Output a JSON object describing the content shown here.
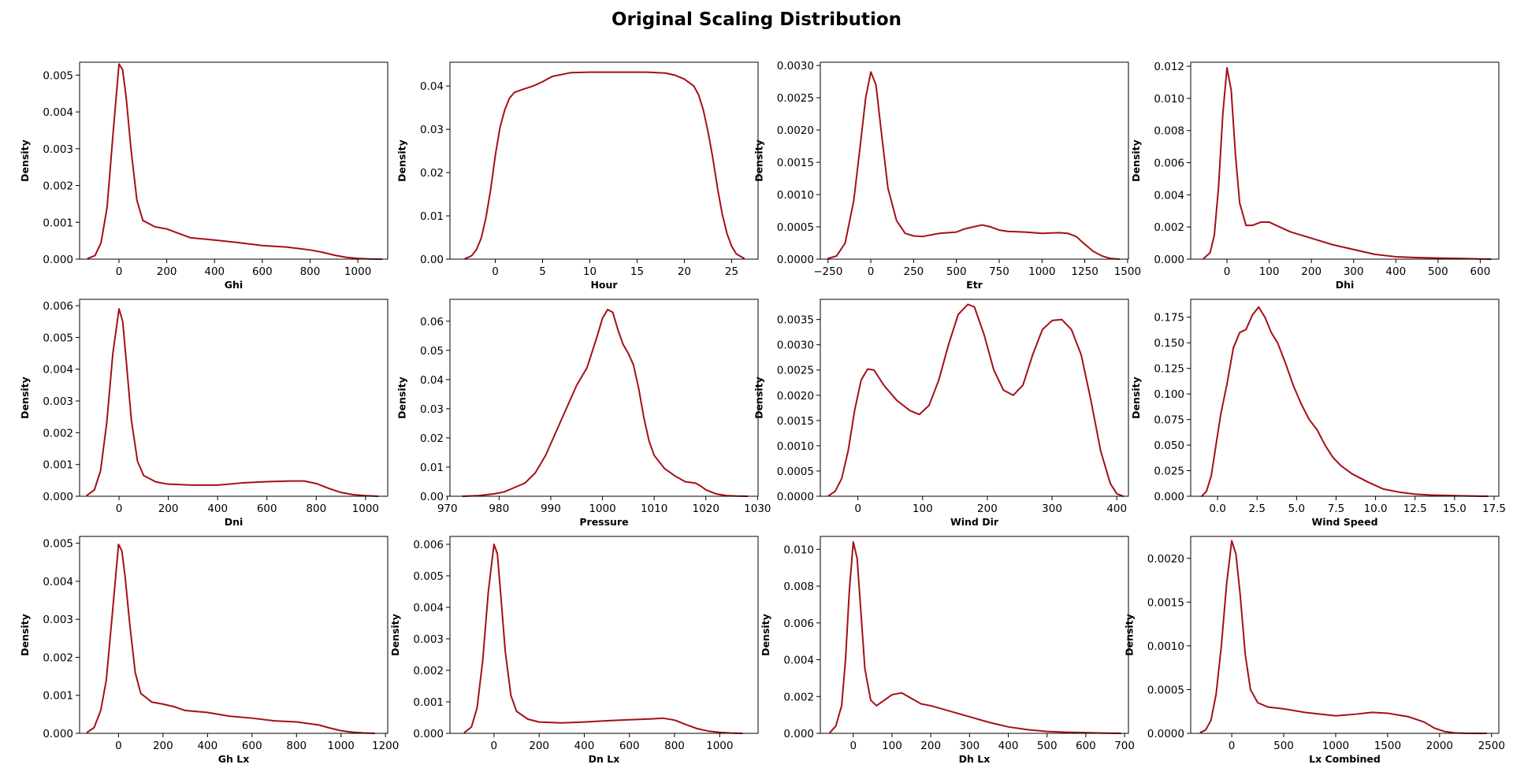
{
  "page": {
    "title": "Original Scaling Distribution"
  },
  "style": {
    "line_color": "#a50f15",
    "axis_color": "#000000"
  },
  "chart_data": [
    {
      "type": "line",
      "xlabel": "Ghi",
      "ylabel": "Density",
      "xlim": [
        -165,
        1125
      ],
      "ylim": [
        0,
        0.00535
      ],
      "xticks": [
        0,
        200,
        400,
        600,
        800,
        1000
      ],
      "xtick_labels": [
        "0",
        "200",
        "400",
        "600",
        "800",
        "1000"
      ],
      "yticks": [
        0,
        0.001,
        0.002,
        0.003,
        0.004,
        0.005
      ],
      "ytick_labels": [
        "0.000",
        "0.001",
        "0.002",
        "0.003",
        "0.004",
        "0.005"
      ],
      "x": [
        -130,
        -100,
        -75,
        -50,
        -25,
        0,
        15,
        30,
        50,
        75,
        100,
        150,
        200,
        250,
        300,
        400,
        500,
        600,
        700,
        800,
        850,
        900,
        950,
        1000,
        1050,
        1100
      ],
      "y": [
        2e-05,
        0.0001,
        0.00045,
        0.0014,
        0.0034,
        0.0053,
        0.00515,
        0.0044,
        0.003,
        0.0016,
        0.00105,
        0.00088,
        0.00082,
        0.0007,
        0.00058,
        0.00052,
        0.00045,
        0.00037,
        0.00033,
        0.00025,
        0.00019,
        0.00011,
        5e-05,
        2e-05,
        5e-06,
        0.0
      ]
    },
    {
      "type": "line",
      "xlabel": "Hour",
      "ylabel": "Density",
      "xlim": [
        -4.8,
        27.8
      ],
      "ylim": [
        0,
        0.0455
      ],
      "xticks": [
        0,
        5,
        10,
        15,
        20,
        25
      ],
      "xtick_labels": [
        "0",
        "5",
        "10",
        "15",
        "20",
        "25"
      ],
      "yticks": [
        0,
        0.01,
        0.02,
        0.03,
        0.04
      ],
      "ytick_labels": [
        "0.00",
        "0.01",
        "0.02",
        "0.03",
        "0.04"
      ],
      "x": [
        -3.2,
        -2.5,
        -2,
        -1.5,
        -1,
        -0.5,
        0,
        0.5,
        1,
        1.5,
        2,
        3,
        4,
        5,
        6,
        8,
        10,
        12,
        14,
        16,
        18,
        19,
        20,
        21,
        21.5,
        22,
        22.5,
        23,
        23.5,
        24,
        24.5,
        25,
        25.5,
        26.3
      ],
      "y": [
        0.0001,
        0.0008,
        0.0022,
        0.0048,
        0.0095,
        0.016,
        0.024,
        0.0305,
        0.0345,
        0.0372,
        0.0385,
        0.0393,
        0.04,
        0.041,
        0.0422,
        0.0431,
        0.0432,
        0.0432,
        0.0432,
        0.0432,
        0.043,
        0.0425,
        0.0416,
        0.04,
        0.038,
        0.0345,
        0.0295,
        0.0235,
        0.0165,
        0.0105,
        0.006,
        0.003,
        0.0012,
        0.0002
      ]
    },
    {
      "type": "line",
      "xlabel": "Etr",
      "ylabel": "Density",
      "xlim": [
        -295,
        1505
      ],
      "ylim": [
        0,
        0.00305
      ],
      "xticks": [
        -250,
        0,
        250,
        500,
        750,
        1000,
        1250,
        1500
      ],
      "xtick_labels": [
        "−250",
        "0",
        "250",
        "500",
        "750",
        "1000",
        "1250",
        "1500"
      ],
      "yticks": [
        0,
        0.0005,
        0.001,
        0.0015,
        0.002,
        0.0025,
        0.003
      ],
      "ytick_labels": [
        "0.0000",
        "0.0005",
        "0.0010",
        "0.0015",
        "0.0020",
        "0.0025",
        "0.0030"
      ],
      "x": [
        -250,
        -200,
        -150,
        -100,
        -60,
        -30,
        0,
        30,
        60,
        100,
        150,
        200,
        250,
        300,
        400,
        500,
        550,
        600,
        650,
        700,
        750,
        800,
        900,
        1000,
        1100,
        1150,
        1200,
        1250,
        1300,
        1350,
        1400,
        1450
      ],
      "y": [
        1e-05,
        5e-05,
        0.00025,
        0.0009,
        0.0018,
        0.0025,
        0.0029,
        0.0027,
        0.002,
        0.0011,
        0.0006,
        0.0004,
        0.00036,
        0.00035,
        0.0004,
        0.00042,
        0.00047,
        0.0005,
        0.00053,
        0.0005,
        0.00045,
        0.00043,
        0.00042,
        0.0004,
        0.00041,
        0.0004,
        0.00035,
        0.00023,
        0.00012,
        5e-05,
        1e-05,
        0.0
      ]
    },
    {
      "type": "line",
      "xlabel": "Dhi",
      "ylabel": "Density",
      "xlim": [
        -86,
        644
      ],
      "ylim": [
        0,
        0.01225
      ],
      "xticks": [
        0,
        100,
        200,
        300,
        400,
        500,
        600
      ],
      "xtick_labels": [
        "0",
        "100",
        "200",
        "300",
        "400",
        "500",
        "600"
      ],
      "yticks": [
        0,
        0.002,
        0.004,
        0.006,
        0.008,
        0.01,
        0.012
      ],
      "ytick_labels": [
        "0.000",
        "0.002",
        "0.004",
        "0.006",
        "0.008",
        "0.010",
        "0.012"
      ],
      "x": [
        -55,
        -40,
        -30,
        -20,
        -10,
        0,
        10,
        20,
        30,
        45,
        60,
        80,
        100,
        125,
        150,
        200,
        250,
        300,
        350,
        400,
        450,
        500,
        550,
        600,
        625
      ],
      "y": [
        5e-05,
        0.0004,
        0.0015,
        0.0045,
        0.009,
        0.0119,
        0.0105,
        0.0065,
        0.0035,
        0.0021,
        0.0021,
        0.0023,
        0.0023,
        0.002,
        0.0017,
        0.0013,
        0.0009,
        0.0006,
        0.0003,
        0.00015,
        0.0001,
        7e-05,
        4e-05,
        1e-05,
        0.0
      ]
    },
    {
      "type": "line",
      "xlabel": "Dni",
      "ylabel": "Density",
      "xlim": [
        -160,
        1090
      ],
      "ylim": [
        0,
        0.0062
      ],
      "xticks": [
        0,
        200,
        400,
        600,
        800,
        1000
      ],
      "xtick_labels": [
        "0",
        "200",
        "400",
        "600",
        "800",
        "1000"
      ],
      "yticks": [
        0,
        0.001,
        0.002,
        0.003,
        0.004,
        0.005,
        0.006
      ],
      "ytick_labels": [
        "0.000",
        "0.001",
        "0.002",
        "0.003",
        "0.004",
        "0.005",
        "0.006"
      ],
      "x": [
        -130,
        -100,
        -75,
        -50,
        -25,
        0,
        15,
        30,
        50,
        75,
        100,
        150,
        200,
        300,
        400,
        500,
        600,
        700,
        750,
        800,
        850,
        900,
        950,
        1000,
        1050
      ],
      "y": [
        3e-05,
        0.0002,
        0.0008,
        0.0023,
        0.0045,
        0.0059,
        0.0055,
        0.0042,
        0.0024,
        0.0011,
        0.00065,
        0.00045,
        0.00038,
        0.00035,
        0.00035,
        0.00042,
        0.00046,
        0.00048,
        0.00048,
        0.0004,
        0.00025,
        0.00012,
        5e-05,
        2e-05,
        0.0
      ]
    },
    {
      "type": "line",
      "xlabel": "Pressure",
      "ylabel": "Density",
      "xlim": [
        970.5,
        1030.1
      ],
      "ylim": [
        0,
        0.0675
      ],
      "xticks": [
        970,
        980,
        990,
        1000,
        1010,
        1020,
        1030
      ],
      "xtick_labels": [
        "970",
        "980",
        "990",
        "1000",
        "1010",
        "1020",
        "1030"
      ],
      "yticks": [
        0,
        0.01,
        0.02,
        0.03,
        0.04,
        0.05,
        0.06
      ],
      "ytick_labels": [
        "0.00",
        "0.01",
        "0.02",
        "0.03",
        "0.04",
        "0.05",
        "0.06"
      ],
      "x": [
        973,
        976,
        979,
        981,
        983,
        985,
        987,
        989,
        991,
        993,
        995,
        997,
        999,
        1000,
        1001,
        1002,
        1003,
        1004,
        1005,
        1006,
        1007,
        1008,
        1009,
        1010,
        1012,
        1014,
        1016,
        1018,
        1019,
        1020,
        1022,
        1024,
        1026,
        1028
      ],
      "y": [
        0.0,
        0.0002,
        0.0008,
        0.0015,
        0.003,
        0.0045,
        0.008,
        0.014,
        0.022,
        0.03,
        0.038,
        0.044,
        0.055,
        0.061,
        0.064,
        0.063,
        0.057,
        0.052,
        0.049,
        0.045,
        0.037,
        0.027,
        0.019,
        0.014,
        0.0095,
        0.007,
        0.005,
        0.0045,
        0.0035,
        0.0022,
        0.0008,
        0.0002,
        5e-05,
        0.0
      ]
    },
    {
      "type": "line",
      "xlabel": "Wind Dir",
      "ylabel": "Density",
      "xlim": [
        -58,
        418
      ],
      "ylim": [
        0,
        0.0039
      ],
      "xticks": [
        0,
        100,
        200,
        300,
        400
      ],
      "xtick_labels": [
        "0",
        "100",
        "200",
        "300",
        "400"
      ],
      "yticks": [
        0,
        0.0005,
        0.001,
        0.0015,
        0.002,
        0.0025,
        0.003,
        0.0035
      ],
      "ytick_labels": [
        "0.0000",
        "0.0005",
        "0.0010",
        "0.0015",
        "0.0020",
        "0.0025",
        "0.0030",
        "0.0035"
      ],
      "x": [
        -45,
        -35,
        -25,
        -15,
        -5,
        5,
        15,
        25,
        40,
        60,
        80,
        95,
        110,
        125,
        140,
        155,
        170,
        180,
        195,
        210,
        225,
        240,
        255,
        270,
        285,
        300,
        315,
        330,
        345,
        360,
        375,
        390,
        400,
        410
      ],
      "y": [
        1e-05,
        0.0001,
        0.00035,
        0.0009,
        0.0017,
        0.0023,
        0.00252,
        0.0025,
        0.0022,
        0.0019,
        0.0017,
        0.00162,
        0.0018,
        0.0023,
        0.003,
        0.0036,
        0.0038,
        0.00375,
        0.0032,
        0.0025,
        0.0021,
        0.002,
        0.0022,
        0.0028,
        0.0033,
        0.00348,
        0.0035,
        0.0033,
        0.0028,
        0.0019,
        0.0009,
        0.00025,
        5e-05,
        0.0
      ]
    },
    {
      "type": "line",
      "xlabel": "Wind Speed",
      "ylabel": "Density",
      "xlim": [
        -1.7,
        17.8
      ],
      "ylim": [
        0,
        0.1925
      ],
      "xticks": [
        0,
        2.5,
        5,
        7.5,
        10,
        12.5,
        15,
        17.5
      ],
      "xtick_labels": [
        "0.0",
        "2.5",
        "5.0",
        "7.5",
        "10.0",
        "12.5",
        "15.0",
        "17.5"
      ],
      "yticks": [
        0,
        0.025,
        0.05,
        0.075,
        0.1,
        0.125,
        0.15,
        0.175
      ],
      "ytick_labels": [
        "0.000",
        "0.025",
        "0.050",
        "0.075",
        "0.100",
        "0.125",
        "0.150",
        "0.175"
      ],
      "x": [
        -1,
        -0.7,
        -0.4,
        -0.1,
        0.2,
        0.6,
        1,
        1.4,
        1.8,
        2.2,
        2.6,
        3,
        3.4,
        3.8,
        4.3,
        4.8,
        5.3,
        5.8,
        6.3,
        6.8,
        7.3,
        7.8,
        8.5,
        9.5,
        10.5,
        11.5,
        12.5,
        13.5,
        14.5,
        15.5,
        16.5,
        17.1
      ],
      "y": [
        0.0,
        0.005,
        0.02,
        0.05,
        0.08,
        0.11,
        0.145,
        0.16,
        0.163,
        0.177,
        0.185,
        0.175,
        0.16,
        0.15,
        0.13,
        0.108,
        0.09,
        0.075,
        0.065,
        0.05,
        0.038,
        0.03,
        0.022,
        0.014,
        0.007,
        0.004,
        0.002,
        0.0012,
        0.0008,
        0.0004,
        0.0001,
        0.0
      ]
    },
    {
      "type": "line",
      "xlabel": "Gh Lx",
      "ylabel": "Density",
      "xlim": [
        -175,
        1210
      ],
      "ylim": [
        0,
        0.00518
      ],
      "xticks": [
        0,
        200,
        400,
        600,
        800,
        1000,
        1200
      ],
      "xtick_labels": [
        "0",
        "200",
        "400",
        "600",
        "800",
        "1000",
        "1200"
      ],
      "yticks": [
        0,
        0.001,
        0.002,
        0.003,
        0.004,
        0.005
      ],
      "ytick_labels": [
        "0.000",
        "0.001",
        "0.002",
        "0.003",
        "0.004",
        "0.005"
      ],
      "x": [
        -140,
        -110,
        -80,
        -55,
        -30,
        0,
        15,
        30,
        50,
        75,
        100,
        150,
        200,
        250,
        300,
        400,
        500,
        600,
        700,
        800,
        900,
        950,
        1000,
        1050,
        1100,
        1150
      ],
      "y": [
        3e-05,
        0.00015,
        0.0006,
        0.0014,
        0.003,
        0.00497,
        0.0048,
        0.0041,
        0.0029,
        0.0016,
        0.00105,
        0.00082,
        0.00077,
        0.0007,
        0.0006,
        0.00055,
        0.00045,
        0.0004,
        0.00033,
        0.0003,
        0.00022,
        0.00014,
        7e-05,
        3e-05,
        1e-05,
        0.0
      ]
    },
    {
      "type": "line",
      "xlabel": "Dn Lx",
      "ylabel": "Density",
      "xlim": [
        -195,
        1170
      ],
      "ylim": [
        0,
        0.00625
      ],
      "xticks": [
        0,
        200,
        400,
        600,
        800,
        1000
      ],
      "xtick_labels": [
        "0",
        "200",
        "400",
        "600",
        "800",
        "1000"
      ],
      "yticks": [
        0,
        0.001,
        0.002,
        0.003,
        0.004,
        0.005,
        0.006
      ],
      "ytick_labels": [
        "0.000",
        "0.001",
        "0.002",
        "0.003",
        "0.004",
        "0.005",
        "0.006"
      ],
      "x": [
        -130,
        -100,
        -75,
        -50,
        -25,
        0,
        15,
        30,
        50,
        75,
        100,
        150,
        200,
        300,
        400,
        500,
        600,
        700,
        750,
        800,
        850,
        900,
        950,
        1000,
        1050,
        1100
      ],
      "y": [
        3e-05,
        0.0002,
        0.0008,
        0.0023,
        0.0045,
        0.006,
        0.0057,
        0.0044,
        0.0026,
        0.0012,
        0.0007,
        0.00045,
        0.00036,
        0.00033,
        0.00036,
        0.0004,
        0.00043,
        0.00046,
        0.00048,
        0.00042,
        0.00028,
        0.00015,
        7e-05,
        3e-05,
        1e-05,
        0.0
      ]
    },
    {
      "type": "line",
      "xlabel": "Dh Lx",
      "ylabel": "Density",
      "xlim": [
        -85,
        710
      ],
      "ylim": [
        0,
        0.0107
      ],
      "xticks": [
        0,
        100,
        200,
        300,
        400,
        500,
        600,
        700
      ],
      "xtick_labels": [
        "0",
        "100",
        "200",
        "300",
        "400",
        "500",
        "600",
        "700"
      ],
      "yticks": [
        0,
        0.002,
        0.004,
        0.006,
        0.008,
        0.01
      ],
      "ytick_labels": [
        "0.000",
        "0.002",
        "0.004",
        "0.006",
        "0.008",
        "0.010"
      ],
      "x": [
        -60,
        -45,
        -30,
        -20,
        -10,
        0,
        10,
        20,
        30,
        45,
        60,
        80,
        100,
        125,
        150,
        175,
        200,
        250,
        300,
        350,
        400,
        450,
        500,
        550,
        600,
        650,
        690
      ],
      "y": [
        5e-05,
        0.0004,
        0.0015,
        0.004,
        0.0078,
        0.0104,
        0.0095,
        0.0065,
        0.0035,
        0.0018,
        0.0015,
        0.0018,
        0.0021,
        0.0022,
        0.0019,
        0.0016,
        0.0015,
        0.0012,
        0.0009,
        0.0006,
        0.00035,
        0.0002,
        0.0001,
        6e-05,
        4e-05,
        1e-05,
        0.0
      ]
    },
    {
      "type": "line",
      "xlabel": "Lx Combined",
      "ylabel": "Density",
      "xlim": [
        -395,
        2570
      ],
      "ylim": [
        0,
        0.00225
      ],
      "xticks": [
        0,
        500,
        1000,
        1500,
        2000,
        2500
      ],
      "xtick_labels": [
        "0",
        "500",
        "1000",
        "1500",
        "2000",
        "2500"
      ],
      "yticks": [
        0,
        0.0005,
        0.001,
        0.0015,
        0.002
      ],
      "ytick_labels": [
        "0.0000",
        "0.0005",
        "0.0010",
        "0.0015",
        "0.0020"
      ],
      "x": [
        -300,
        -250,
        -200,
        -150,
        -100,
        -50,
        0,
        40,
        80,
        130,
        180,
        250,
        350,
        500,
        700,
        1000,
        1200,
        1350,
        1500,
        1700,
        1850,
        1950,
        2050,
        2150,
        2250,
        2350,
        2450
      ],
      "y": [
        1e-05,
        4e-05,
        0.00015,
        0.00045,
        0.001,
        0.0017,
        0.0022,
        0.00205,
        0.0016,
        0.0009,
        0.0005,
        0.00035,
        0.0003,
        0.00028,
        0.00024,
        0.0002,
        0.00022,
        0.00024,
        0.00023,
        0.00019,
        0.00013,
        6e-05,
        2e-05,
        5e-06,
        1e-06,
        0.0,
        0.0
      ]
    }
  ]
}
